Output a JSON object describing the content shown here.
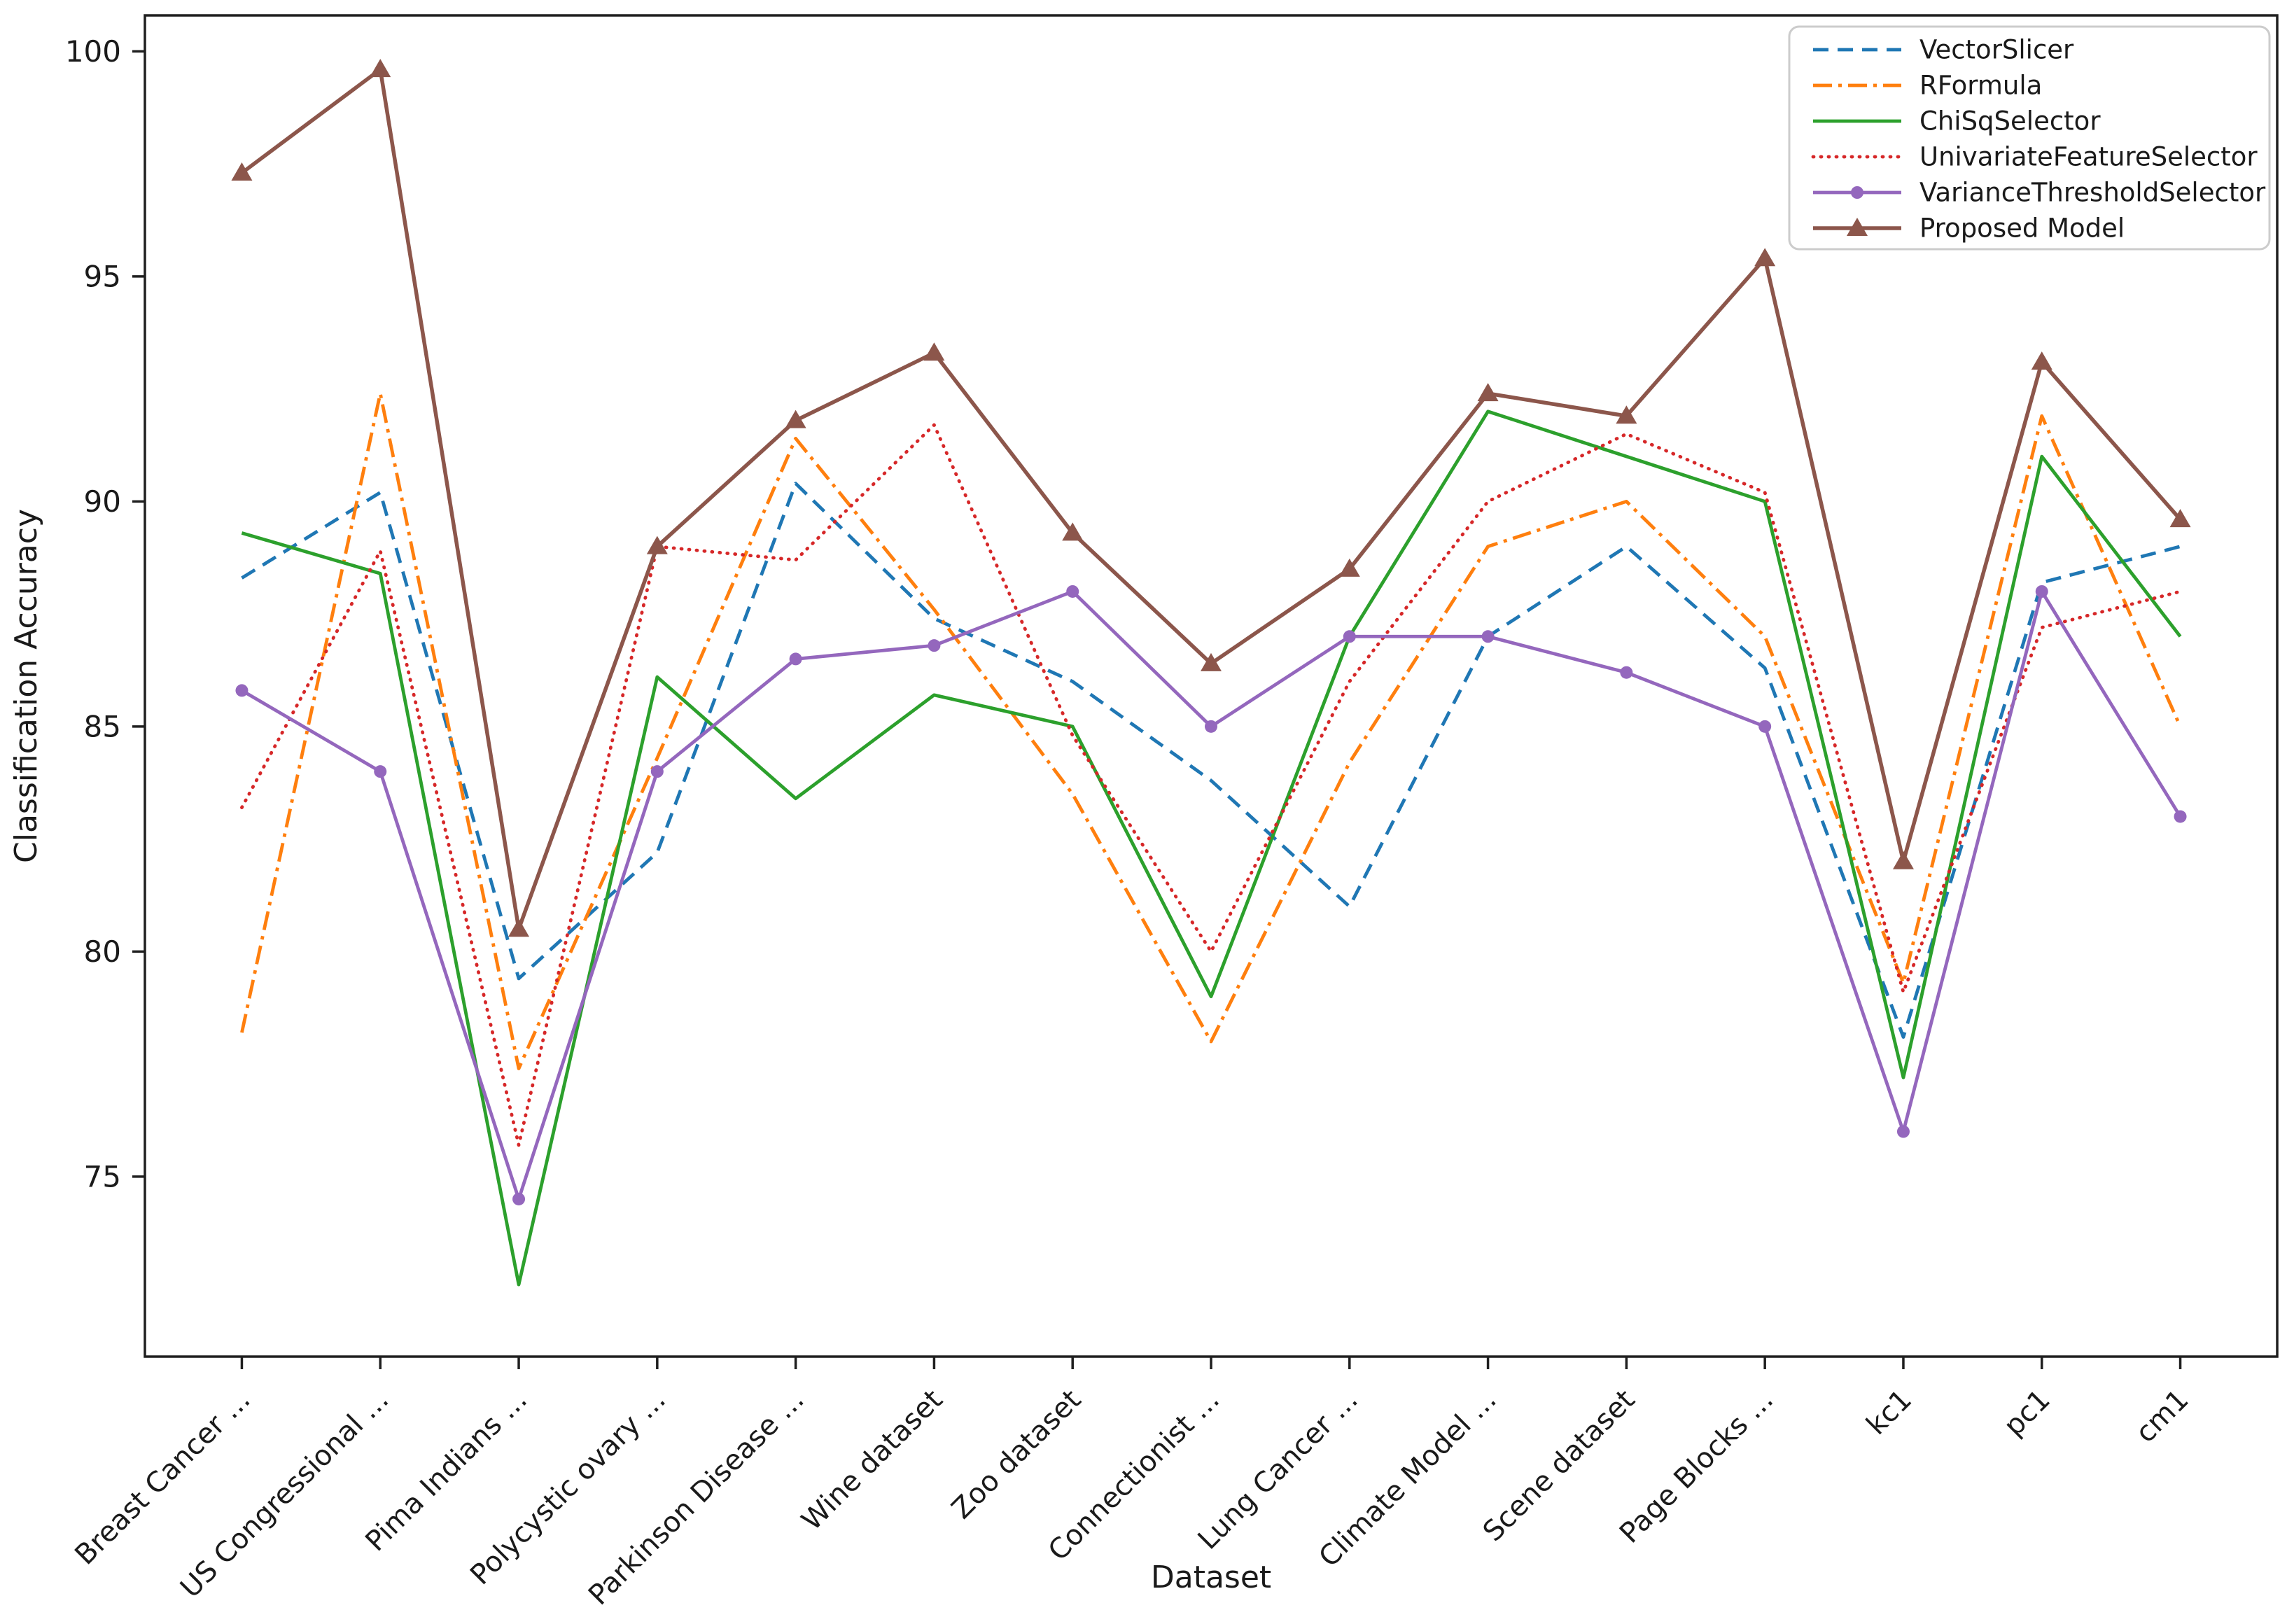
{
  "figure": {
    "background": "#ffffff",
    "spine_color": "#1f1f1f",
    "tick_color": "#1f1f1f",
    "legend_border_color": "#cccccc",
    "legend_background": "#ffffff"
  },
  "chart_data": {
    "type": "line",
    "title": "",
    "xlabel": "Dataset",
    "ylabel": "Classification Accuracy",
    "ylim": [
      71.0,
      100.8
    ],
    "yticks": [
      75,
      80,
      85,
      90,
      95,
      100
    ],
    "grid": false,
    "legend_position": "upper right",
    "categories": [
      "Breast Cancer ...",
      "US Congressional ...",
      "Pima Indians ...",
      "Polycystic ovary ...",
      "Parkinson Disease ...",
      "Wine dataset",
      "Zoo dataset",
      "Connectionist ...",
      "Lung Cancer ...",
      "Climate Model ...",
      "Scene dataset",
      "Page Blocks ...",
      "kc1",
      "pc1",
      "cm1"
    ],
    "series": [
      {
        "name": "VectorSlicer",
        "color": "#1f77b4",
        "line_style": "dashed",
        "marker": "none",
        "values": [
          88.3,
          90.2,
          79.4,
          82.2,
          90.4,
          87.4,
          86.0,
          83.8,
          81.0,
          87.0,
          89.0,
          86.3,
          78.1,
          88.2,
          89.0
        ]
      },
      {
        "name": "RFormula",
        "color": "#ff7f0e",
        "line_style": "dashdot",
        "marker": "none",
        "values": [
          78.2,
          92.4,
          77.4,
          84.3,
          91.4,
          87.6,
          83.5,
          78.0,
          84.2,
          89.0,
          90.0,
          87.0,
          79.3,
          91.9,
          85.0
        ]
      },
      {
        "name": "ChiSqSelector",
        "color": "#2ca02c",
        "line_style": "solid",
        "marker": "none",
        "values": [
          89.3,
          88.4,
          72.6,
          86.1,
          83.4,
          85.7,
          85.0,
          79.0,
          87.0,
          92.0,
          91.0,
          90.0,
          77.2,
          91.0,
          87.0
        ]
      },
      {
        "name": "UnivariateFeatureSelector",
        "color": "#d62728",
        "line_style": "dotted",
        "marker": "none",
        "values": [
          83.2,
          88.9,
          75.7,
          89.0,
          88.7,
          91.7,
          84.8,
          80.0,
          86.0,
          90.0,
          91.5,
          90.2,
          79.1,
          87.2,
          88.0
        ]
      },
      {
        "name": "VarianceThresholdSelector",
        "color": "#9467bd",
        "line_style": "solid",
        "marker": "circle",
        "values": [
          85.8,
          84.0,
          74.5,
          84.0,
          86.5,
          86.8,
          88.0,
          85.0,
          87.0,
          87.0,
          86.2,
          85.0,
          76.0,
          88.0,
          83.0
        ]
      },
      {
        "name": "Proposed Model",
        "color": "#8c564b",
        "line_style": "solid",
        "marker": "triangle",
        "values": [
          97.3,
          99.6,
          80.5,
          89.0,
          91.8,
          93.3,
          89.3,
          86.4,
          88.5,
          92.4,
          91.9,
          95.4,
          82.0,
          93.1,
          89.6
        ]
      }
    ]
  }
}
